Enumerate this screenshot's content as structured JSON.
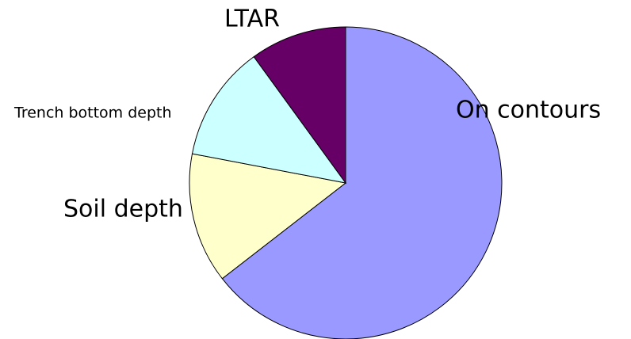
{
  "chart_data": {
    "type": "pie",
    "categories": [
      "On contours",
      "Soil depth",
      "Trench bottom depth",
      "LTAR"
    ],
    "values": [
      64.5,
      13.5,
      12,
      10
    ],
    "colors": [
      "#9999ff",
      "#ffffcc",
      "#ccffff",
      "#660066"
    ]
  }
}
